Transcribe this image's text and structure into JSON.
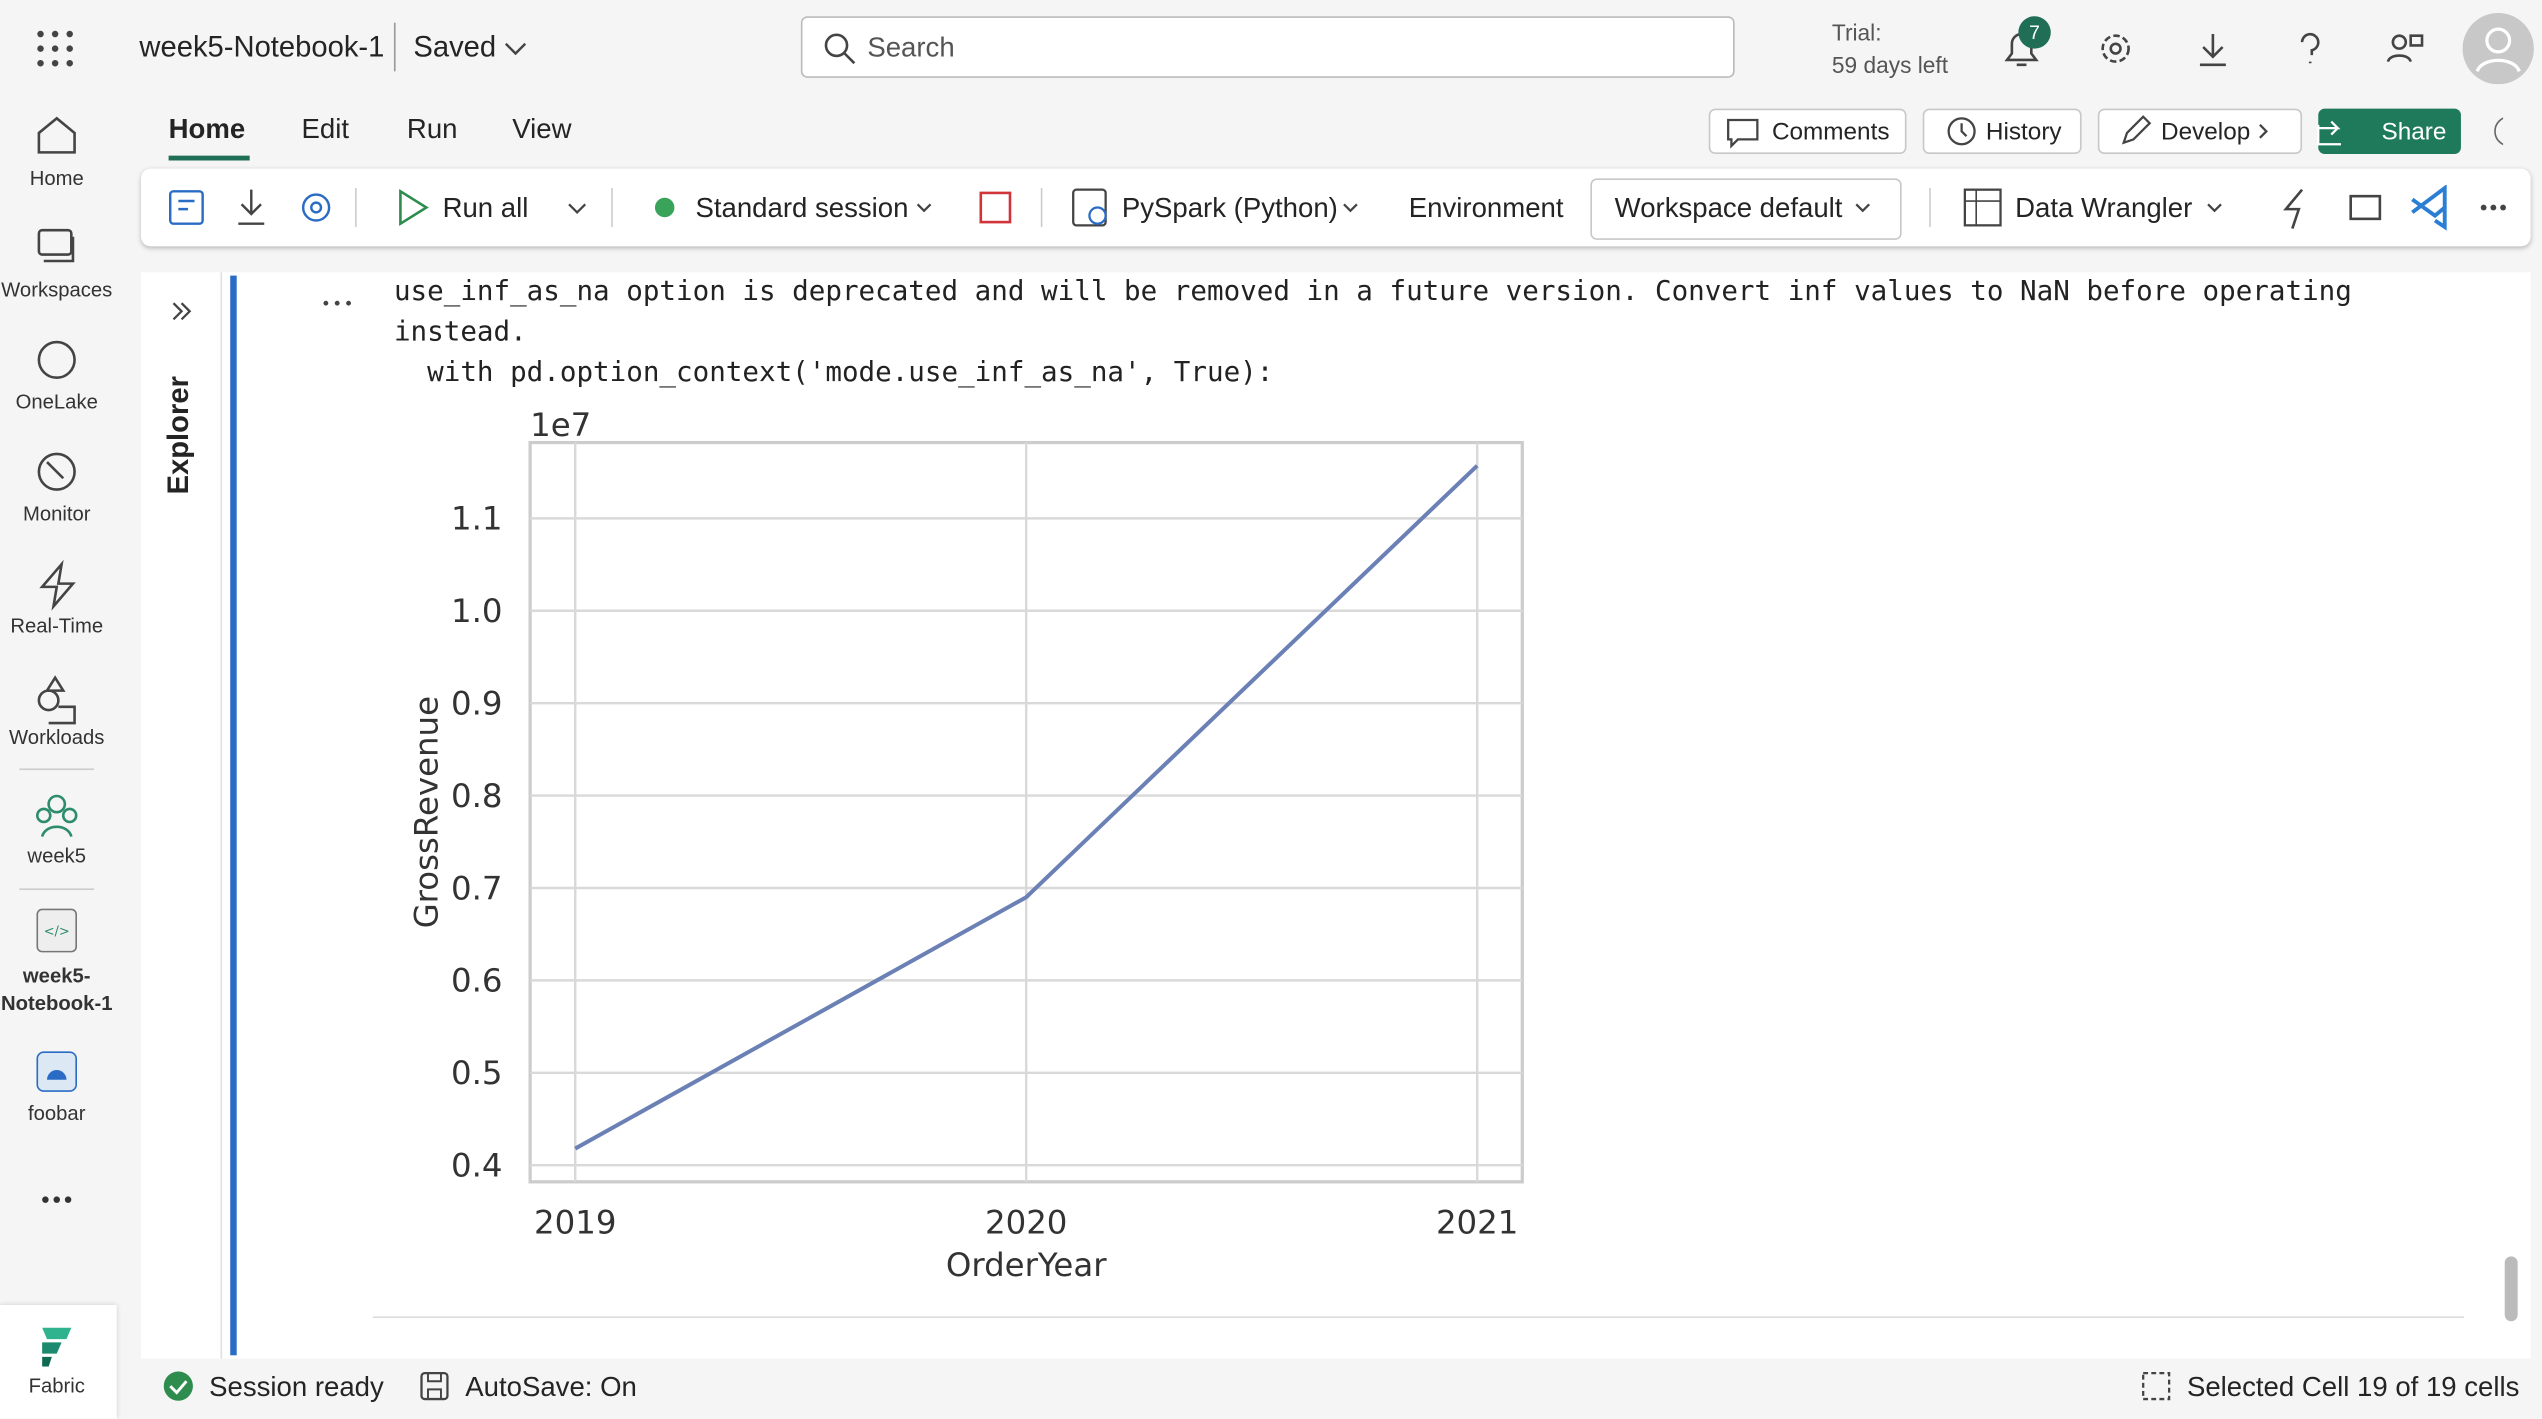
{
  "header": {
    "notebook_name": "week5-Notebook-1",
    "save_status": "Saved",
    "search_placeholder": "Search",
    "trial_label": "Trial:",
    "trial_days": "59 days left",
    "notification_count": "7"
  },
  "nav": [
    {
      "label": "Home"
    },
    {
      "label": "Workspaces"
    },
    {
      "label": "OneLake"
    },
    {
      "label": "Monitor"
    },
    {
      "label": "Real-Time"
    },
    {
      "label": "Workloads"
    },
    {
      "label": "week5"
    },
    {
      "label": "week5-Notebook-1"
    },
    {
      "label": "foobar"
    },
    {
      "label": "Fabric"
    }
  ],
  "tabs": [
    "Home",
    "Edit",
    "Run",
    "View"
  ],
  "actions": [
    "Comments",
    "History",
    "Develop",
    "Share"
  ],
  "toolbar": {
    "run_all": "Run all",
    "session": "Standard session",
    "language": "PySpark (Python)",
    "environment": "Environment",
    "workspace": "Workspace default",
    "data_wrangler": "Data Wrangler"
  },
  "explorer": "Explorer",
  "output": {
    "lines": [
      "use_inf_as_na option is deprecated and will be removed in a future version. Convert inf values to NaN before operating",
      "instead.",
      "  with pd.option_context('mode.use_inf_as_na', True):"
    ]
  },
  "chart_data": {
    "type": "line",
    "x_label": "OrderYear",
    "y_label": "GrossRevenue",
    "offset_label": "1e7",
    "x": [
      2019,
      2020,
      2021
    ],
    "values": [
      0.418,
      0.69,
      1.157
    ],
    "color": "#6b81b6",
    "xlim": [
      2018.9,
      2021.1
    ],
    "xticks": [
      2019,
      2020,
      2021
    ],
    "ylim": [
      0.382,
      1.182
    ],
    "yticks": [
      0.4,
      0.5,
      0.6,
      0.7,
      0.8,
      0.9,
      {
        "value": 1,
        "label": "1.0"
      },
      1.1
    ],
    "grid": true
  },
  "status": {
    "session": "Session ready",
    "autosave": "AutoSave: On",
    "selection": "Selected Cell 19 of 19 cells"
  }
}
